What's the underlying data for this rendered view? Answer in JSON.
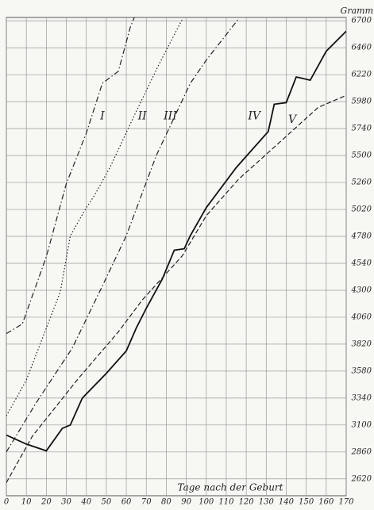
{
  "chart_data": {
    "type": "line",
    "x_label": "Tage nach der Geburt",
    "y_label": "Gramm",
    "xlim": [
      0,
      170
    ],
    "xticks": [
      0,
      10,
      20,
      30,
      40,
      50,
      60,
      70,
      80,
      90,
      100,
      110,
      120,
      130,
      140,
      150,
      160,
      170
    ],
    "ylim": [
      2470,
      6730
    ],
    "yticks": [
      2620,
      2860,
      3100,
      3340,
      3580,
      3820,
      4060,
      4300,
      4540,
      4780,
      5020,
      5260,
      5500,
      5740,
      5980,
      6220,
      6460,
      6700
    ],
    "grid": true,
    "series": [
      {
        "name": "I",
        "color": "#222",
        "line_style": "dashdot",
        "x": [
          0,
          8,
          20,
          30,
          40,
          48,
          56,
          62,
          64
        ],
        "values": [
          3914,
          4000,
          4600,
          5250,
          5700,
          6143,
          6250,
          6643,
          6730
        ]
      },
      {
        "name": "II",
        "color": "#222",
        "line_style": "dotted",
        "x": [
          0,
          10,
          20,
          27,
          32,
          40,
          44,
          52,
          64,
          76,
          88
        ],
        "values": [
          3180,
          3500,
          3964,
          4286,
          4786,
          5036,
          5143,
          5400,
          5857,
          6300,
          6714
        ]
      },
      {
        "name": "III",
        "color": "#222",
        "line_style": "dashdot",
        "x": [
          0,
          15,
          33,
          47,
          60,
          75,
          92,
          100,
          116
        ],
        "values": [
          2860,
          3300,
          3786,
          4300,
          4786,
          5500,
          6143,
          6350,
          6714
        ]
      },
      {
        "name": "IV",
        "color": "#111",
        "line_style": "solid",
        "x": [
          0,
          10,
          20,
          28,
          32,
          38,
          50,
          60,
          65,
          70,
          78,
          84,
          89,
          92,
          100,
          115,
          131,
          134,
          140,
          145,
          152,
          160,
          170
        ],
        "values": [
          3010,
          2930,
          2870,
          3070,
          3100,
          3340,
          3560,
          3760,
          3964,
          4140,
          4400,
          4657,
          4670,
          4786,
          5036,
          5393,
          5714,
          5957,
          5971,
          6200,
          6171,
          6429,
          6607
        ]
      },
      {
        "name": "V",
        "color": "#222",
        "line_style": "dashed",
        "x": [
          0,
          13,
          36,
          56,
          68,
          88,
          100,
          116,
          136,
          156,
          170
        ],
        "values": [
          2586,
          3000,
          3514,
          3929,
          4214,
          4607,
          4964,
          5286,
          5607,
          5929,
          6036
        ]
      }
    ]
  }
}
